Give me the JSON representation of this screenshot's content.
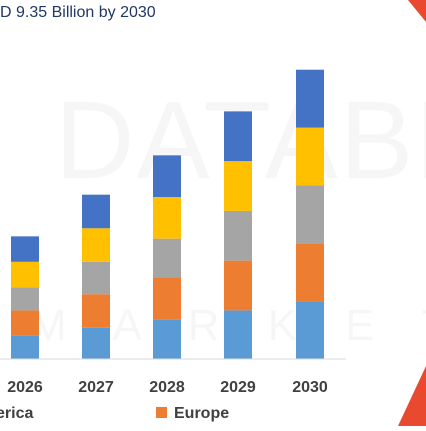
{
  "subtitle": "D 9.35 Billion by 2030",
  "watermark": {
    "line1": "DATABR",
    "line2": "M A R K E T R E"
  },
  "colors": {
    "decor_red": "#e8492f",
    "baseline": "#d9d9d9"
  },
  "chart_data": {
    "type": "bar",
    "stacked": true,
    "categories": [
      "2026",
      "2027",
      "2028",
      "2029",
      "2030"
    ],
    "series": [
      {
        "name": "erica",
        "color": "#5b9bd5",
        "values": [
          1.0,
          1.35,
          1.7,
          2.1,
          2.5
        ]
      },
      {
        "name": "Europe",
        "color": "#ed7d31",
        "values": [
          1.1,
          1.45,
          1.8,
          2.15,
          2.5
        ]
      },
      {
        "name": "",
        "color": "#a5a5a5",
        "values": [
          1.0,
          1.4,
          1.7,
          2.15,
          2.5
        ]
      },
      {
        "name": "",
        "color": "#ffc000",
        "values": [
          1.1,
          1.45,
          1.8,
          2.15,
          2.5
        ]
      },
      {
        "name": "",
        "color": "#4472c4",
        "values": [
          1.1,
          1.45,
          1.8,
          2.15,
          2.5
        ]
      }
    ],
    "ylim": [
      0,
      14
    ],
    "grid": false,
    "legend": "bottom"
  }
}
